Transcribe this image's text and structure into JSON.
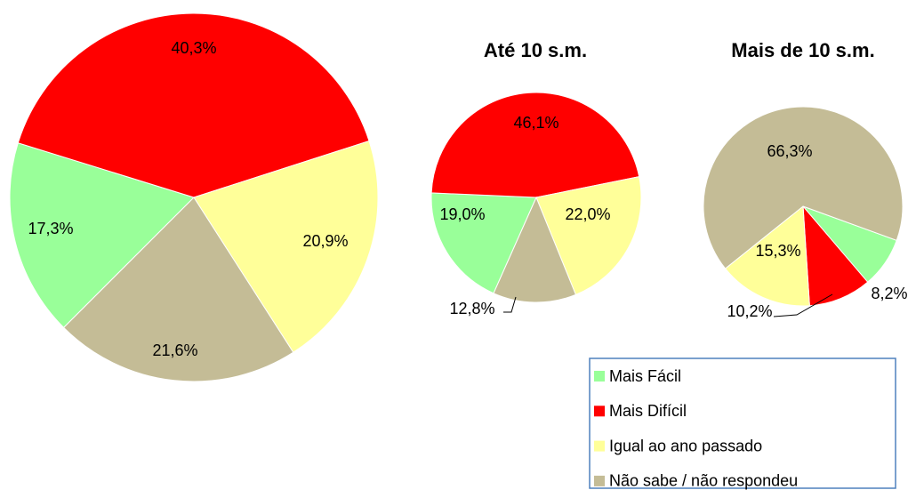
{
  "chart_data": [
    {
      "type": "pie",
      "categories": [
        "Mais Fácil",
        "Mais Difícil",
        "Igual ao ano passado",
        "Não sabe / não respondeu"
      ],
      "values": [
        17.3,
        40.3,
        20.9,
        21.6
      ],
      "value_labels": [
        "17,3%",
        "40,3%",
        "20,9%",
        "21,6%"
      ],
      "colors": [
        "#99ff99",
        "#ff0000",
        "#ffff99",
        "#c4bc96"
      ]
    },
    {
      "type": "pie",
      "title": "Até 10 s.m.",
      "categories": [
        "Mais Fácil",
        "Mais Difícil",
        "Igual ao ano passado",
        "Não sabe / não respondeu"
      ],
      "values": [
        19.0,
        46.1,
        22.0,
        12.8
      ],
      "value_labels": [
        "19,0%",
        "46,1%",
        "22,0%",
        "12,8%"
      ],
      "colors": [
        "#99ff99",
        "#ff0000",
        "#ffff99",
        "#c4bc96"
      ]
    },
    {
      "type": "pie",
      "title": "Mais de 10 s.m.",
      "categories": [
        "Mais Fácil",
        "Mais Difícil",
        "Igual ao ano passado",
        "Não sabe / não respondeu"
      ],
      "values": [
        8.2,
        10.2,
        15.3,
        66.3
      ],
      "value_labels": [
        "8,2%",
        "10,2%",
        "15,3%",
        "66,3%"
      ],
      "colors": [
        "#99ff99",
        "#ff0000",
        "#ffff99",
        "#c4bc96"
      ]
    }
  ]
}
